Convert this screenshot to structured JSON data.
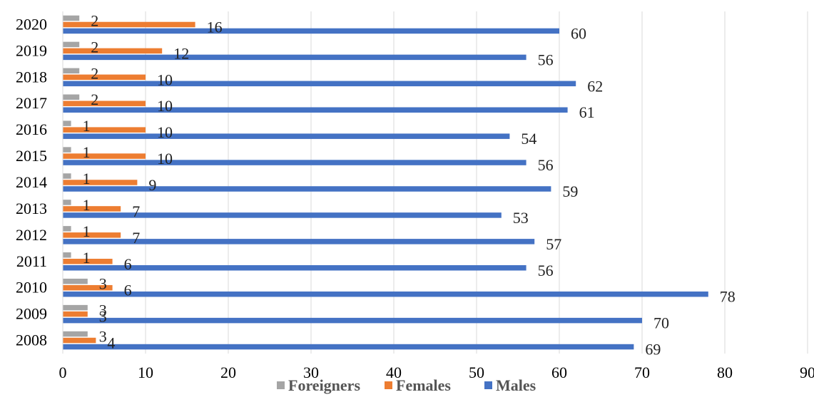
{
  "chart_data": {
    "type": "bar",
    "orientation": "horizontal",
    "categories": [
      "2008",
      "2009",
      "2010",
      "2011",
      "2012",
      "2013",
      "2014",
      "2015",
      "2016",
      "2017",
      "2018",
      "2019",
      "2020"
    ],
    "series": [
      {
        "name": "Foreigners",
        "color": "#a5a5a5",
        "values": [
          3,
          3,
          3,
          1,
          1,
          1,
          1,
          1,
          1,
          2,
          2,
          2,
          2
        ]
      },
      {
        "name": "Females",
        "color": "#ed7d31",
        "values": [
          4,
          3,
          6,
          6,
          7,
          7,
          9,
          10,
          10,
          10,
          10,
          12,
          16
        ]
      },
      {
        "name": "Males",
        "color": "#4472c4",
        "values": [
          69,
          70,
          78,
          56,
          57,
          53,
          59,
          56,
          54,
          61,
          62,
          56,
          60
        ]
      }
    ],
    "xlim": [
      0,
      90
    ],
    "xticks": [
      "0",
      "10",
      "20",
      "30",
      "40",
      "50",
      "60",
      "70",
      "80",
      "90"
    ],
    "gridlines": "vertical",
    "legend": {
      "position": "bottom",
      "items": [
        "Foreigners",
        "Females",
        "Males"
      ]
    }
  }
}
